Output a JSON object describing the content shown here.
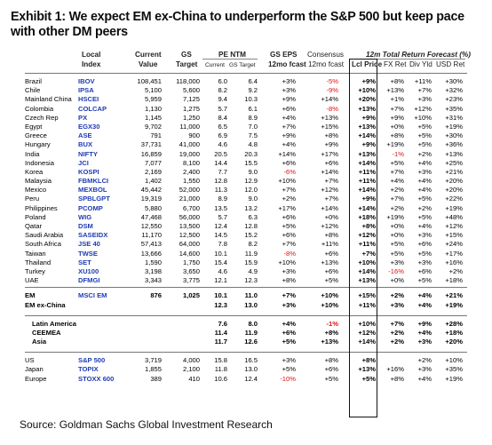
{
  "title": "Exhibit 1: We expect EM ex-China to underperform the S&P 500 but keep pace with other DM peers",
  "source": "Source: Goldman Sachs Global Investment Research",
  "headers": {
    "local_index_1": "Local",
    "local_index_2": "Index",
    "current_1": "Current",
    "current_2": "Value",
    "gs_1": "GS",
    "gs_2": "Target",
    "pe": "PE NTM",
    "pe_current": "Current",
    "pe_gs": "GS Target",
    "eps_1": "GS EPS",
    "eps_2": "12mo fcast",
    "cons_1": "Consensus",
    "cons_2": "12mo fcast",
    "forecast": "12m Total Return Forecast (%)",
    "lcl": "Lcl Price",
    "fx": "FX Ret",
    "dy": "Div Yld",
    "usd": "USD Ret"
  },
  "countries": [
    {
      "name": "Brazil",
      "index": "IBOV",
      "cur": "108,451",
      "gs": "118,000",
      "pe1": "6.0",
      "pe2": "6.4",
      "eps": "+3%",
      "cons": "-5%",
      "cons_red": true,
      "lcl": "+9%",
      "fx": "+8%",
      "dy": "+11%",
      "usd": "+30%"
    },
    {
      "name": "Chile",
      "index": "IPSA",
      "cur": "5,100",
      "gs": "5,600",
      "pe1": "8.2",
      "pe2": "9.2",
      "eps": "+3%",
      "cons": "-9%",
      "cons_red": true,
      "lcl": "+10%",
      "fx": "+13%",
      "dy": "+7%",
      "usd": "+32%"
    },
    {
      "name": "Mainland China",
      "index": "HSCEI",
      "cur": "5,959",
      "gs": "7,125",
      "pe1": "9.4",
      "pe2": "10.3",
      "eps": "+9%",
      "cons": "+14%",
      "lcl": "+20%",
      "fx": "+1%",
      "dy": "+3%",
      "usd": "+23%"
    },
    {
      "name": "Colombia",
      "index": "COLCAP",
      "cur": "1,130",
      "gs": "1,275",
      "pe1": "5.7",
      "pe2": "6.1",
      "eps": "+6%",
      "cons": "-8%",
      "cons_red": true,
      "lcl": "+13%",
      "fx": "+7%",
      "dy": "+12%",
      "usd": "+35%"
    },
    {
      "name": "Czech Rep",
      "index": "PX",
      "cur": "1,145",
      "gs": "1,250",
      "pe1": "8.4",
      "pe2": "8.9",
      "eps": "+4%",
      "cons": "+13%",
      "lcl": "+9%",
      "fx": "+9%",
      "dy": "+10%",
      "usd": "+31%"
    },
    {
      "name": "Egypt",
      "index": "EGX30",
      "cur": "9,702",
      "gs": "11,000",
      "pe1": "6.5",
      "pe2": "7.0",
      "eps": "+7%",
      "cons": "+15%",
      "lcl": "+13%",
      "fx": "+0%",
      "dy": "+5%",
      "usd": "+19%"
    },
    {
      "name": "Greece",
      "index": "ASE",
      "cur": "791",
      "gs": "900",
      "pe1": "6.9",
      "pe2": "7.5",
      "eps": "+9%",
      "cons": "+8%",
      "lcl": "+14%",
      "fx": "+8%",
      "dy": "+5%",
      "usd": "+30%"
    },
    {
      "name": "Hungary",
      "index": "BUX",
      "cur": "37,731",
      "gs": "41,000",
      "pe1": "4.6",
      "pe2": "4.8",
      "eps": "+4%",
      "cons": "+9%",
      "lcl": "+9%",
      "fx": "+19%",
      "dy": "+5%",
      "usd": "+36%"
    },
    {
      "name": "India",
      "index": "NIFTY",
      "cur": "16,859",
      "gs": "19,000",
      "pe1": "20.5",
      "pe2": "20.3",
      "eps": "+14%",
      "cons": "+17%",
      "lcl": "+13%",
      "fx": "-1%",
      "fx_red": true,
      "dy": "+2%",
      "usd": "+13%"
    },
    {
      "name": "Indonesia",
      "index": "JCI",
      "cur": "7,077",
      "gs": "8,100",
      "pe1": "14.4",
      "pe2": "15.5",
      "eps": "+6%",
      "cons": "+6%",
      "lcl": "+14%",
      "fx": "+5%",
      "dy": "+4%",
      "usd": "+25%"
    },
    {
      "name": "Korea",
      "index": "KOSPI",
      "cur": "2,169",
      "gs": "2,400",
      "pe1": "7.7",
      "pe2": "9.0",
      "eps": "-6%",
      "cons": "+14%",
      "eps_red": true,
      "lcl": "+11%",
      "fx": "+7%",
      "dy": "+3%",
      "usd": "+21%"
    },
    {
      "name": "Malaysia",
      "index": "FBMKLCI",
      "cur": "1,402",
      "gs": "1,550",
      "pe1": "12.8",
      "pe2": "12.9",
      "eps": "+10%",
      "cons": "+7%",
      "lcl": "+11%",
      "fx": "+4%",
      "dy": "+4%",
      "usd": "+20%"
    },
    {
      "name": "Mexico",
      "index": "MEXBOL",
      "cur": "45,442",
      "gs": "52,000",
      "pe1": "11.3",
      "pe2": "12.0",
      "eps": "+7%",
      "cons": "+12%",
      "lcl": "+14%",
      "fx": "+2%",
      "dy": "+4%",
      "usd": "+20%"
    },
    {
      "name": "Peru",
      "index": "SPBLGPT",
      "cur": "19,319",
      "gs": "21,000",
      "pe1": "8.9",
      "pe2": "9.0",
      "eps": "+2%",
      "cons": "+7%",
      "lcl": "+9%",
      "fx": "+7%",
      "dy": "+5%",
      "usd": "+22%"
    },
    {
      "name": "Philippines",
      "index": "PCOMP",
      "cur": "5,880",
      "gs": "6,700",
      "pe1": "13.5",
      "pe2": "13.2",
      "eps": "+17%",
      "cons": "+14%",
      "lcl": "+14%",
      "fx": "+2%",
      "dy": "+2%",
      "usd": "+19%"
    },
    {
      "name": "Poland",
      "index": "WIG",
      "cur": "47,468",
      "gs": "56,000",
      "pe1": "5.7",
      "pe2": "6.3",
      "eps": "+6%",
      "cons": "+0%",
      "lcl": "+18%",
      "fx": "+19%",
      "dy": "+5%",
      "usd": "+48%"
    },
    {
      "name": "Qatar",
      "index": "DSM",
      "cur": "12,550",
      "gs": "13,500",
      "pe1": "12.4",
      "pe2": "12.8",
      "eps": "+5%",
      "cons": "+12%",
      "lcl": "+8%",
      "fx": "+0%",
      "dy": "+4%",
      "usd": "+12%"
    },
    {
      "name": "Saudi Arabia",
      "index": "SASEIDX",
      "cur": "11,170",
      "gs": "12,500",
      "pe1": "14.5",
      "pe2": "15.2",
      "eps": "+6%",
      "cons": "+8%",
      "lcl": "+12%",
      "fx": "+0%",
      "dy": "+3%",
      "usd": "+15%"
    },
    {
      "name": "South Africa",
      "index": "JSE 40",
      "cur": "57,413",
      "gs": "64,000",
      "pe1": "7.8",
      "pe2": "8.2",
      "eps": "+7%",
      "cons": "+11%",
      "lcl": "+11%",
      "fx": "+5%",
      "dy": "+6%",
      "usd": "+24%"
    },
    {
      "name": "Taiwan",
      "index": "TWSE",
      "cur": "13,666",
      "gs": "14,600",
      "pe1": "10.1",
      "pe2": "11.9",
      "eps": "-8%",
      "cons": "+6%",
      "eps_red": true,
      "lcl": "+7%",
      "fx": "+5%",
      "dy": "+5%",
      "usd": "+17%"
    },
    {
      "name": "Thailand",
      "index": "SET",
      "cur": "1,590",
      "gs": "1,750",
      "pe1": "15.4",
      "pe2": "15.9",
      "eps": "+10%",
      "cons": "+13%",
      "lcl": "+10%",
      "fx": "+3%",
      "dy": "+3%",
      "usd": "+16%"
    },
    {
      "name": "Turkey",
      "index": "XU100",
      "cur": "3,198",
      "gs": "3,650",
      "pe1": "4.6",
      "pe2": "4.9",
      "eps": "+3%",
      "cons": "+6%",
      "lcl": "+14%",
      "fx": "-16%",
      "fx_red": true,
      "dy": "+6%",
      "usd": "+2%"
    },
    {
      "name": "UAE",
      "index": "DFMGI",
      "cur": "3,343",
      "gs": "3,775",
      "pe1": "12.1",
      "pe2": "12.3",
      "eps": "+8%",
      "cons": "+5%",
      "lcl": "+13%",
      "fx": "+0%",
      "dy": "+5%",
      "usd": "+18%"
    }
  ],
  "aggregates": [
    {
      "name": "EM",
      "index": "MSCI EM",
      "cur": "876",
      "gs": "1,025",
      "pe1": "10.1",
      "pe2": "11.0",
      "eps": "+7%",
      "cons": "+10%",
      "lcl": "+15%",
      "fx": "+2%",
      "dy": "+4%",
      "usd": "+21%"
    },
    {
      "name": "EM ex-China",
      "index": "",
      "cur": "",
      "gs": "",
      "pe1": "12.3",
      "pe2": "13.0",
      "eps": "+3%",
      "cons": "+10%",
      "lcl": "+11%",
      "fx": "+3%",
      "dy": "+4%",
      "usd": "+19%"
    }
  ],
  "regions": [
    {
      "name": "Latin America",
      "pe1": "7.6",
      "pe2": "8.0",
      "eps": "+4%",
      "cons": "-1%",
      "cons_red": true,
      "lcl": "+10%",
      "fx": "+7%",
      "dy": "+9%",
      "usd": "+28%"
    },
    {
      "name": "CEEMEA",
      "pe1": "11.4",
      "pe2": "11.9",
      "eps": "+6%",
      "cons": "+8%",
      "lcl": "+12%",
      "fx": "+2%",
      "dy": "+4%",
      "usd": "+18%"
    },
    {
      "name": "Asia",
      "pe1": "11.7",
      "pe2": "12.6",
      "eps": "+5%",
      "cons": "+13%",
      "lcl": "+14%",
      "fx": "+2%",
      "dy": "+3%",
      "usd": "+20%"
    }
  ],
  "dm": [
    {
      "name": "US",
      "index": "S&P 500",
      "cur": "3,719",
      "gs": "4,000",
      "pe1": "15.8",
      "pe2": "16.5",
      "eps": "+3%",
      "cons": "+8%",
      "lcl": "+8%",
      "fx": "",
      "dy": "+2%",
      "usd": "+10%"
    },
    {
      "name": "Japan",
      "index": "TOPIX",
      "cur": "1,855",
      "gs": "2,100",
      "pe1": "11.8",
      "pe2": "13.0",
      "eps": "+5%",
      "cons": "+6%",
      "lcl": "+13%",
      "fx": "+16%",
      "dy": "+3%",
      "usd": "+35%"
    },
    {
      "name": "Europe",
      "index": "STOXX 600",
      "cur": "389",
      "gs": "410",
      "pe1": "10.6",
      "pe2": "12.4",
      "eps": "-10%",
      "cons": "+5%",
      "eps_red": true,
      "lcl": "+5%",
      "fx": "+8%",
      "dy": "+4%",
      "usd": "+19%"
    }
  ]
}
